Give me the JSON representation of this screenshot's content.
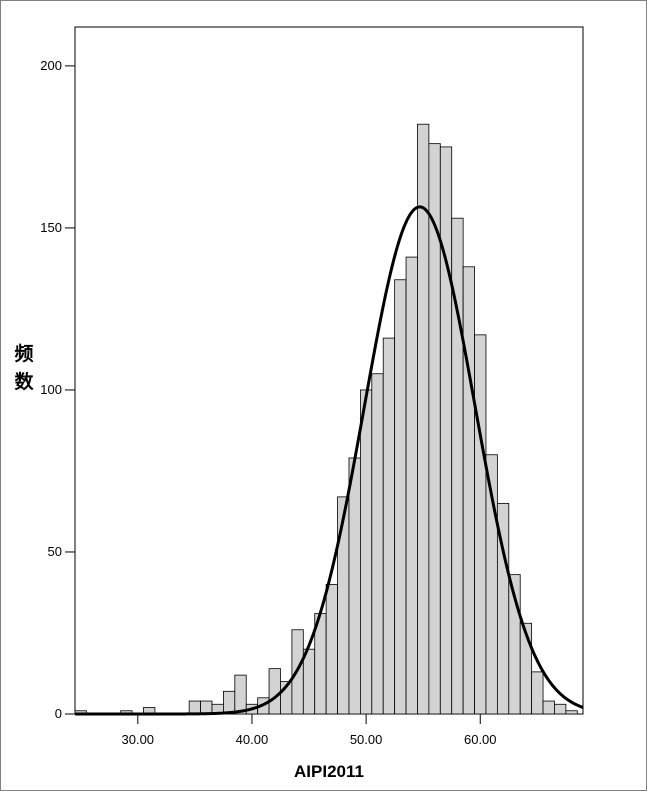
{
  "chart_data": {
    "type": "bar",
    "title": "",
    "xlabel": "AIPI2011",
    "ylabel": "频数",
    "xlim": [
      24.5,
      69.0
    ],
    "ylim": [
      0,
      212
    ],
    "bin_width": 1.0,
    "x_ticks": [
      30,
      40,
      50,
      60
    ],
    "x_tick_labels": [
      "30.00",
      "40.00",
      "50.00",
      "60.00"
    ],
    "y_ticks": [
      0,
      50,
      100,
      150,
      200
    ],
    "y_tick_labels": [
      "0",
      "50",
      "100",
      "150",
      "200"
    ],
    "grid": false,
    "legend": false,
    "bar_color": "#d3d3d3",
    "curve_color": "#000000",
    "series": [
      {
        "kind": "histogram",
        "bins": [
          {
            "x0": 24.5,
            "count": 1
          },
          {
            "x0": 28.5,
            "count": 1
          },
          {
            "x0": 30.5,
            "count": 2
          },
          {
            "x0": 34.5,
            "count": 4
          },
          {
            "x0": 35.5,
            "count": 4
          },
          {
            "x0": 36.5,
            "count": 3
          },
          {
            "x0": 37.5,
            "count": 7
          },
          {
            "x0": 38.5,
            "count": 12
          },
          {
            "x0": 39.5,
            "count": 3
          },
          {
            "x0": 40.5,
            "count": 5
          },
          {
            "x0": 41.5,
            "count": 14
          },
          {
            "x0": 42.5,
            "count": 10
          },
          {
            "x0": 43.5,
            "count": 26
          },
          {
            "x0": 44.5,
            "count": 20
          },
          {
            "x0": 45.5,
            "count": 31
          },
          {
            "x0": 46.5,
            "count": 40
          },
          {
            "x0": 47.5,
            "count": 67
          },
          {
            "x0": 48.5,
            "count": 79
          },
          {
            "x0": 49.5,
            "count": 100
          },
          {
            "x0": 50.5,
            "count": 105
          },
          {
            "x0": 51.5,
            "count": 116
          },
          {
            "x0": 52.5,
            "count": 134
          },
          {
            "x0": 53.5,
            "count": 141
          },
          {
            "x0": 54.5,
            "count": 182
          },
          {
            "x0": 55.5,
            "count": 176
          },
          {
            "x0": 56.5,
            "count": 175
          },
          {
            "x0": 57.5,
            "count": 153
          },
          {
            "x0": 58.5,
            "count": 138
          },
          {
            "x0": 59.5,
            "count": 117
          },
          {
            "x0": 60.5,
            "count": 80
          },
          {
            "x0": 61.5,
            "count": 65
          },
          {
            "x0": 62.5,
            "count": 43
          },
          {
            "x0": 63.5,
            "count": 28
          },
          {
            "x0": 64.5,
            "count": 13
          },
          {
            "x0": 65.5,
            "count": 4
          },
          {
            "x0": 66.5,
            "count": 3
          },
          {
            "x0": 67.5,
            "count": 1
          }
        ]
      },
      {
        "kind": "normal-curve",
        "mean": 54.7,
        "std": 4.85,
        "peak": 156.5
      }
    ]
  }
}
